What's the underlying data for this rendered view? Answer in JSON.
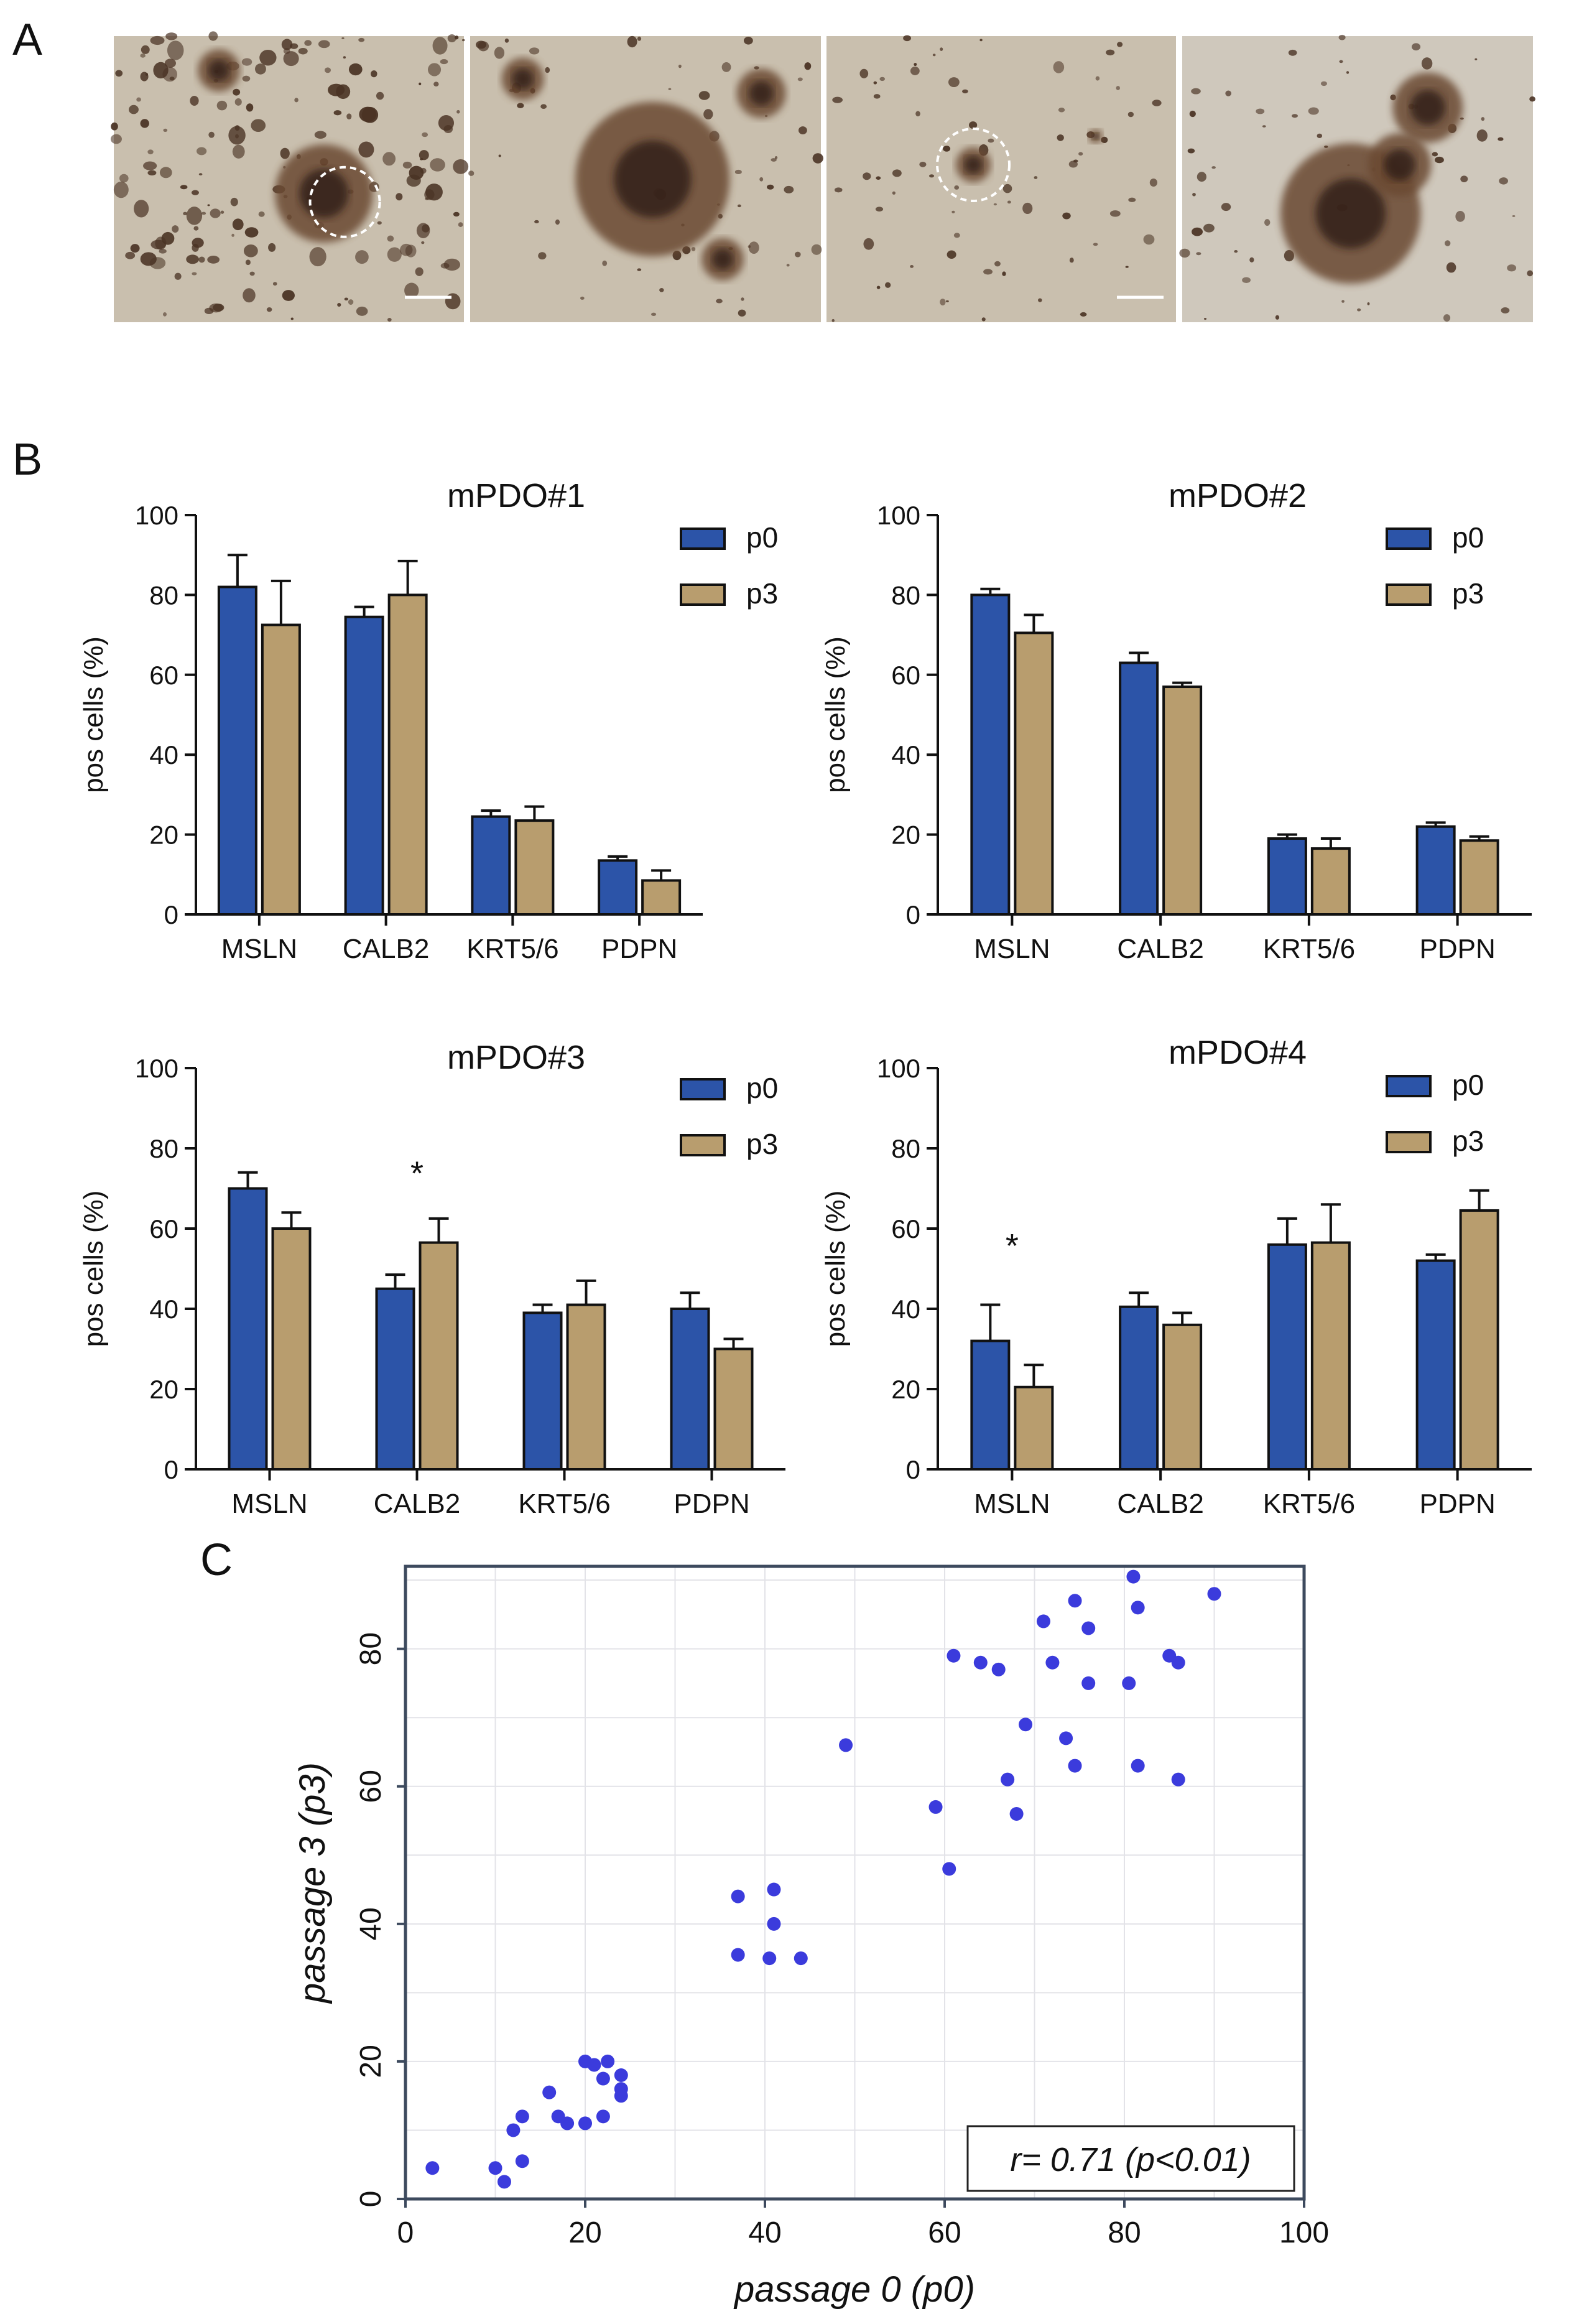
{
  "panel_labels": {
    "A": "A",
    "B": "B",
    "C": "C"
  },
  "colors": {
    "p0": "#2c54a8",
    "p3": "#b89d6e",
    "scatter_point": "#3b3bdc",
    "micro_bg": "#c9bfae",
    "micro_cell": "#4a3324"
  },
  "panel_a": {
    "image_count": 4,
    "circled_images": [
      0,
      2
    ],
    "scale_bar_images": [
      0,
      2
    ]
  },
  "chart_data": [
    {
      "type": "bar",
      "title": "mPDO#1",
      "categories": [
        "MSLN",
        "CALB2",
        "KRT5/6",
        "PDPN"
      ],
      "series": [
        {
          "name": "p0",
          "values": [
            82,
            74.5,
            24.5,
            13.5
          ],
          "errors": [
            8,
            2.5,
            1.5,
            1
          ]
        },
        {
          "name": "p3",
          "values": [
            72.5,
            80,
            23.5,
            8.5
          ],
          "errors": [
            11,
            8.5,
            3.5,
            2.5
          ]
        }
      ],
      "xlabel": "",
      "ylabel": "pos cells (%)",
      "ylim": [
        0,
        100
      ],
      "yticks": [
        "0",
        "20",
        "40",
        "60",
        "80",
        "100"
      ],
      "legend_position": "top-right",
      "annotations": [],
      "grid": false
    },
    {
      "type": "bar",
      "title": "mPDO#2",
      "categories": [
        "MSLN",
        "CALB2",
        "KRT5/6",
        "PDPN"
      ],
      "series": [
        {
          "name": "p0",
          "values": [
            80,
            63,
            19,
            22
          ],
          "errors": [
            1.5,
            2.5,
            1,
            1
          ]
        },
        {
          "name": "p3",
          "values": [
            70.5,
            57,
            16.5,
            18.5
          ],
          "errors": [
            4.5,
            1,
            2.5,
            1
          ]
        }
      ],
      "xlabel": "",
      "ylabel": "pos cells (%)",
      "ylim": [
        0,
        100
      ],
      "yticks": [
        "0",
        "20",
        "40",
        "60",
        "80",
        "100"
      ],
      "legend_position": "top-right",
      "annotations": [],
      "grid": false
    },
    {
      "type": "bar",
      "title": "mPDO#3",
      "categories": [
        "MSLN",
        "CALB2",
        "KRT5/6",
        "PDPN"
      ],
      "series": [
        {
          "name": "p0",
          "values": [
            70,
            45,
            39,
            40
          ],
          "errors": [
            4,
            3.5,
            2,
            4
          ]
        },
        {
          "name": "p3",
          "values": [
            60,
            56.5,
            41,
            30
          ],
          "errors": [
            4,
            6,
            6,
            2.5
          ]
        }
      ],
      "xlabel": "",
      "ylabel": "pos cells (%)",
      "ylim": [
        0,
        100
      ],
      "yticks": [
        "0",
        "20",
        "40",
        "60",
        "80",
        "100"
      ],
      "legend_position": "top-right",
      "annotations": [
        {
          "text": "*",
          "category": "CALB2",
          "y": 74
        }
      ],
      "grid": false
    },
    {
      "type": "bar",
      "title": "mPDO#4",
      "categories": [
        "MSLN",
        "CALB2",
        "KRT5/6",
        "PDPN"
      ],
      "series": [
        {
          "name": "p0",
          "values": [
            32,
            40.5,
            56,
            52
          ],
          "errors": [
            9,
            3.5,
            6.5,
            1.5
          ]
        },
        {
          "name": "p3",
          "values": [
            20.5,
            36,
            56.5,
            64.5
          ],
          "errors": [
            5.5,
            3,
            9.5,
            5
          ]
        }
      ],
      "xlabel": "",
      "ylabel": "pos cells (%)",
      "ylim": [
        0,
        100
      ],
      "yticks": [
        "0",
        "20",
        "40",
        "60",
        "80",
        "100"
      ],
      "legend_position": "top-right",
      "annotations": [
        {
          "text": "*",
          "category": "MSLN",
          "y": 56
        }
      ],
      "grid": false
    },
    {
      "type": "scatter",
      "title": "",
      "xlabel": "passage 0 (p0)",
      "ylabel": "passage 3 (p3)",
      "xlim": [
        0,
        100
      ],
      "ylim": [
        0,
        92
      ],
      "xticks": [
        "0",
        "20",
        "40",
        "60",
        "80",
        "100"
      ],
      "yticks": [
        "0",
        "20",
        "40",
        "60",
        "80"
      ],
      "grid": true,
      "annotation": "r= 0.71 (p<0.01)",
      "points": [
        [
          3,
          4.5
        ],
        [
          10,
          4.5
        ],
        [
          11,
          2.5
        ],
        [
          12,
          10
        ],
        [
          13,
          12
        ],
        [
          13,
          5.5
        ],
        [
          16,
          15.5
        ],
        [
          17,
          12
        ],
        [
          18,
          11
        ],
        [
          20,
          11
        ],
        [
          20,
          20
        ],
        [
          21,
          19.5
        ],
        [
          22,
          12
        ],
        [
          22,
          17.5
        ],
        [
          22.5,
          20
        ],
        [
          24,
          18
        ],
        [
          24,
          16
        ],
        [
          24,
          15
        ],
        [
          37,
          44
        ],
        [
          37,
          35.5
        ],
        [
          40.5,
          35
        ],
        [
          41,
          45
        ],
        [
          41,
          40
        ],
        [
          44,
          35
        ],
        [
          49,
          66
        ],
        [
          59,
          57
        ],
        [
          60.5,
          48
        ],
        [
          61,
          79
        ],
        [
          64,
          78
        ],
        [
          66,
          77
        ],
        [
          67,
          61
        ],
        [
          68,
          56
        ],
        [
          69,
          69
        ],
        [
          71,
          84
        ],
        [
          72,
          78
        ],
        [
          73.5,
          67
        ],
        [
          74.5,
          87
        ],
        [
          74.5,
          63
        ],
        [
          76,
          75
        ],
        [
          76,
          83
        ],
        [
          80.5,
          75
        ],
        [
          81,
          90.5
        ],
        [
          81.5,
          86
        ],
        [
          81.5,
          63
        ],
        [
          85,
          79
        ],
        [
          86,
          78
        ],
        [
          86,
          61
        ],
        [
          90,
          88
        ]
      ]
    }
  ]
}
